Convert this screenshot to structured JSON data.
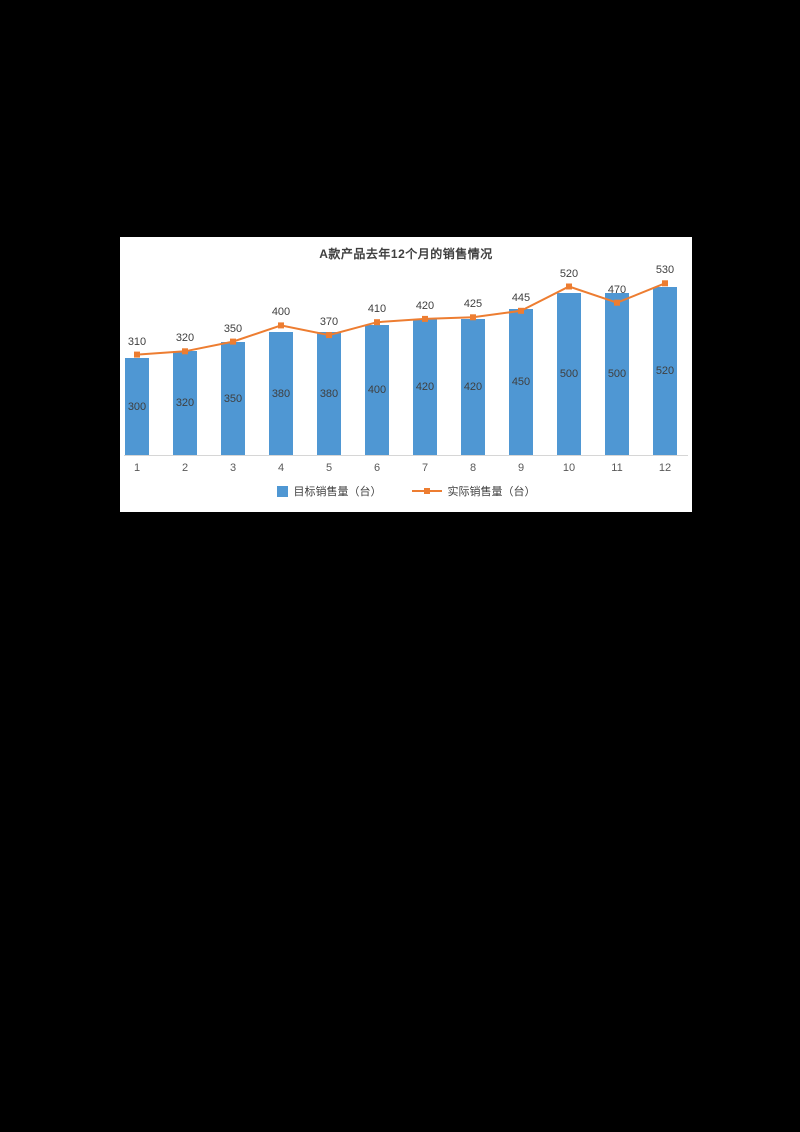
{
  "page": {
    "background": "#000000",
    "panel_background": "#ffffff"
  },
  "chart_data": {
    "type": "bar",
    "subtype": "bar-with-line-overlay",
    "title": "A款产品去年12个月的销售情况",
    "categories": [
      "1",
      "2",
      "3",
      "4",
      "5",
      "6",
      "7",
      "8",
      "9",
      "10",
      "11",
      "12"
    ],
    "series": [
      {
        "name": "目标销售量（台）",
        "type": "bar",
        "color": "#4f97d3",
        "values": [
          300,
          320,
          350,
          380,
          380,
          400,
          420,
          420,
          450,
          500,
          500,
          520
        ]
      },
      {
        "name": "实际销售量（台）",
        "type": "line",
        "color": "#ed7d31",
        "values": [
          310,
          320,
          350,
          400,
          370,
          410,
          420,
          425,
          445,
          520,
          470,
          530
        ]
      }
    ],
    "xlabel": "",
    "ylabel": "",
    "ylim": [
      0,
      560
    ],
    "grid": false,
    "legend_position": "bottom",
    "data_labels": "bars-centered, line-above"
  }
}
